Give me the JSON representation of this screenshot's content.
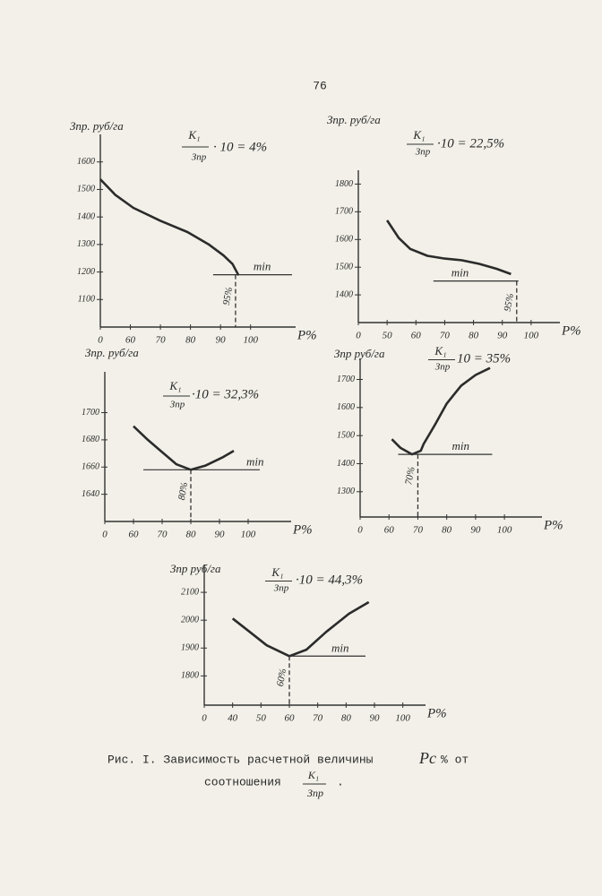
{
  "page_number": "76",
  "caption": {
    "line1": "Рис. I. Зависимость расчетной величины",
    "symbol": "Pс",
    "after_symbol": "% от",
    "line2": "соотношения",
    "numerator": "K₁",
    "denominator": "Зпр",
    "end": "."
  },
  "chart_data": [
    {
      "type": "line",
      "y_label": "Зпр. руб/га",
      "x_label": "P%",
      "formula": {
        "numerator": "K₁",
        "denominator": "Зпр",
        "text": "· 10 = 4%"
      },
      "x": [
        0,
        30,
        61,
        70,
        79,
        86,
        91,
        94,
        96
      ],
      "values": [
        1537,
        1480,
        1433,
        1386,
        1345,
        1301,
        1260,
        1229,
        1188
      ],
      "xlim": [
        0,
        115
      ],
      "ylim": [
        1000,
        1700
      ],
      "xticks": [
        0,
        60,
        70,
        80,
        90,
        100
      ],
      "yticks": [
        1100,
        1200,
        1300,
        1400,
        1500,
        1600
      ],
      "optimum": {
        "x": 95,
        "y": 1190,
        "label": "95%"
      },
      "min_label": "min",
      "color": "#2b2b2b"
    },
    {
      "type": "line",
      "y_label": "Зпр. руб/га",
      "x_label": "P%",
      "formula": {
        "numerator": "K₁",
        "denominator": "Зпр",
        "text": "·10 = 22,5%"
      },
      "x": [
        50,
        54,
        58,
        64,
        70,
        76,
        82,
        88,
        93
      ],
      "values": [
        1669,
        1606,
        1566,
        1541,
        1531,
        1525,
        1512,
        1494,
        1475
      ],
      "xlim": [
        0,
        110
      ],
      "ylim": [
        1300,
        1850
      ],
      "xticks": [
        0,
        50,
        60,
        70,
        80,
        90,
        100
      ],
      "yticks": [
        1400,
        1500,
        1600,
        1700,
        1800
      ],
      "optimum": {
        "x": 95,
        "y": 1450,
        "label": "95%"
      },
      "min_label": "min",
      "color": "#2b2b2b"
    },
    {
      "type": "line",
      "y_label": "Зпр. руб/га",
      "x_label": "P%",
      "formula": {
        "numerator": "K₁",
        "denominator": "Зпр",
        "text": "·10 = 32,3%"
      },
      "x": [
        60,
        65,
        70,
        75,
        80,
        85,
        91,
        95
      ],
      "values": [
        1690,
        1680,
        1671,
        1662,
        1658,
        1661,
        1667,
        1672
      ],
      "xlim": [
        0,
        115
      ],
      "ylim": [
        1620,
        1730
      ],
      "xticks": [
        0,
        60,
        70,
        80,
        90,
        100
      ],
      "yticks": [
        1640,
        1660,
        1680,
        1700
      ],
      "optimum": {
        "x": 80,
        "y": 1658,
        "label": "80%"
      },
      "min_label": "min",
      "color": "#2b2b2b"
    },
    {
      "type": "line",
      "y_label": "Зпр руб/га",
      "x_label": "P%",
      "formula": {
        "numerator": "K₁",
        "denominator": "Зпр",
        "text": "10 = 35%"
      },
      "x": [
        61,
        64,
        68,
        71,
        72,
        76,
        80,
        85,
        90,
        95
      ],
      "values": [
        1487,
        1456,
        1433,
        1446,
        1470,
        1540,
        1614,
        1678,
        1716,
        1741
      ],
      "xlim": [
        0,
        113
      ],
      "ylim": [
        1210,
        1775
      ],
      "xticks": [
        0,
        60,
        70,
        80,
        90,
        100
      ],
      "yticks": [
        1300,
        1400,
        1500,
        1600,
        1700
      ],
      "optimum": {
        "x": 70,
        "y": 1433,
        "label": "70%"
      },
      "min_label": "min",
      "color": "#2b2b2b"
    },
    {
      "type": "line",
      "y_label": "Зпр руб/га",
      "x_label": "P%",
      "formula": {
        "numerator": "K₁",
        "denominator": "Зпр",
        "text": "·10 = 44,3%"
      },
      "x": [
        40,
        46,
        52,
        60,
        66,
        73,
        81,
        88
      ],
      "values": [
        2006,
        1958,
        1910,
        1871,
        1894,
        1958,
        2023,
        2065
      ],
      "xlim": [
        0,
        108
      ],
      "ylim": [
        1695,
        2200
      ],
      "xticks": [
        0,
        40,
        50,
        60,
        70,
        80,
        90,
        100
      ],
      "yticks": [
        1800,
        1900,
        2000,
        2100
      ],
      "optimum": {
        "x": 60,
        "y": 1871,
        "label": "60%"
      },
      "min_label": "min",
      "color": "#2b2b2b"
    }
  ]
}
